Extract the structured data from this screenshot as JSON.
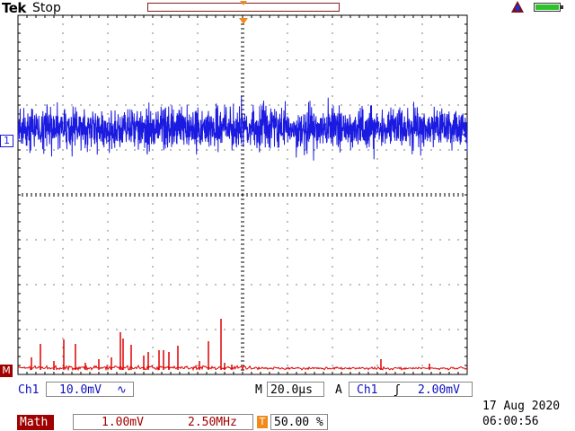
{
  "header": {
    "brand": "Tek",
    "status": "Stop"
  },
  "markers": {
    "ch1": "1",
    "math": "M"
  },
  "channel1": {
    "label": "Ch1",
    "scale": "10.0mV",
    "coupling_symbol": "∿",
    "color": "#1010c0"
  },
  "timebase": {
    "label": "M",
    "value": "20.0µs"
  },
  "trigger": {
    "mode": "A",
    "source": "Ch1",
    "slope_symbol": "ʃ",
    "level": "2.00mV"
  },
  "math": {
    "label": "Math",
    "scale": "1.00mV",
    "frequency": "2.50MHz",
    "trigger_position_icon": "T",
    "trigger_position": "50.00 %",
    "color": "#a00000"
  },
  "clock": {
    "date": "17 Aug 2020",
    "time": "06:00:56"
  },
  "icons": {
    "warning": "warning-triangle-icon",
    "battery": "battery-full-icon"
  },
  "colors": {
    "trace_ch1": "#1a1ae0",
    "trace_math": "#e00000",
    "graticule": "#000000"
  }
}
